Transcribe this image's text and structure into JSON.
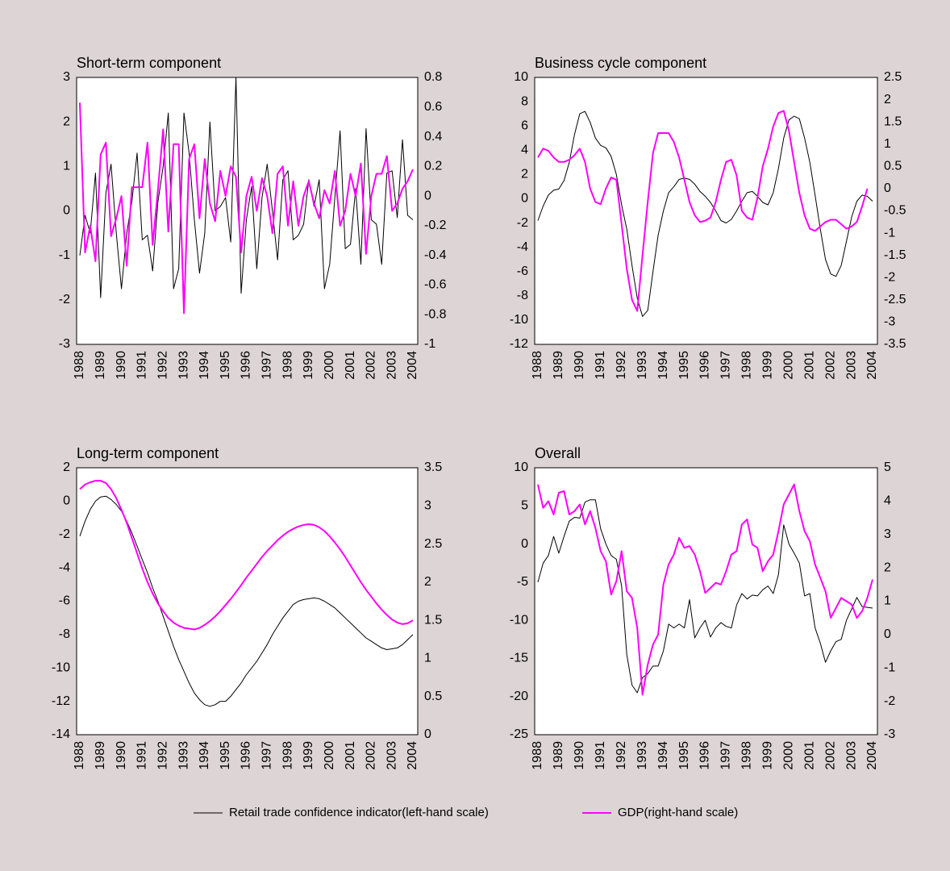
{
  "chart_data": [
    {
      "type": "line",
      "title": "Short-term component",
      "categories": [
        "1988",
        null,
        null,
        null,
        "1989",
        null,
        null,
        null,
        "1990",
        null,
        null,
        null,
        "1991",
        null,
        null,
        null,
        "1992",
        null,
        null,
        null,
        "1993",
        null,
        null,
        null,
        "1994",
        null,
        null,
        null,
        "1995",
        null,
        null,
        null,
        "1996",
        null,
        null,
        null,
        "1997",
        null,
        null,
        null,
        "1998",
        null,
        null,
        null,
        "1999",
        null,
        null,
        null,
        "2000",
        null,
        null,
        null,
        "2001",
        null,
        null,
        null,
        "2002",
        null,
        null,
        null,
        "2003",
        null,
        null,
        null,
        "2004"
      ],
      "series": [
        {
          "name": "Retail trade confidence indicator(left-hand scale)",
          "color": "#000000",
          "values": [
            -1.0,
            -0.1,
            -0.5,
            0.85,
            -1.95,
            0.4,
            1.05,
            -0.5,
            -1.75,
            -0.5,
            0.2,
            1.3,
            -0.65,
            -0.55,
            -1.35,
            0.2,
            1.0,
            2.2,
            -1.75,
            -1.3,
            2.2,
            1.3,
            -0.2,
            -1.4,
            -0.5,
            2.0,
            0.0,
            0.1,
            0.3,
            -0.7,
            3.0,
            -1.85,
            -0.2,
            0.55,
            -1.3,
            0.3,
            1.05,
            0.0,
            -1.1,
            0.7,
            0.9,
            -0.65,
            -0.55,
            -0.3,
            0.7,
            0.1,
            0.7,
            -1.75,
            -1.2,
            0.3,
            1.8,
            -0.85,
            -0.75,
            0.5,
            -1.2,
            1.85,
            -0.2,
            -0.3,
            -1.2,
            0.85,
            0.9,
            -0.15,
            1.6,
            -0.1,
            -0.2
          ]
        },
        {
          "name": "GDP(right-hand scale)",
          "color": "#ff00ff",
          "axis": "y2",
          "values": [
            0.63,
            -0.38,
            -0.2,
            -0.44,
            0.28,
            0.36,
            -0.27,
            -0.15,
            0.0,
            -0.47,
            0.06,
            0.06,
            0.06,
            0.36,
            -0.33,
            0.04,
            0.45,
            -0.24,
            0.35,
            0.35,
            -0.79,
            0.25,
            0.35,
            -0.15,
            0.25,
            -0.05,
            -0.17,
            0.17,
            0.0,
            0.2,
            0.13,
            -0.38,
            0.0,
            0.13,
            -0.1,
            0.12,
            0.0,
            -0.25,
            0.15,
            0.2,
            -0.2,
            0.1,
            -0.2,
            0.0,
            0.1,
            -0.05,
            -0.15,
            0.04,
            -0.05,
            0.17,
            -0.2,
            -0.1,
            0.15,
            0.0,
            0.22,
            -0.39,
            0.0,
            0.15,
            0.15,
            0.27,
            -0.1,
            -0.05,
            0.05,
            0.1,
            0.18
          ]
        }
      ],
      "ylim": [
        -3,
        3
      ],
      "yticks": [
        -3,
        -2,
        -1,
        0,
        1,
        2,
        3
      ],
      "y2lim": [
        -1,
        0.8
      ],
      "y2ticks": [
        -1,
        -0.8,
        -0.6,
        -0.4,
        -0.2,
        0,
        0.2,
        0.4,
        0.6,
        0.8
      ]
    },
    {
      "type": "line",
      "title": "Business cycle component",
      "categories": [
        "1988",
        null,
        null,
        null,
        "1989",
        null,
        null,
        null,
        "1990",
        null,
        null,
        null,
        "1991",
        null,
        null,
        null,
        "1992",
        null,
        null,
        null,
        "1993",
        null,
        null,
        null,
        "1994",
        null,
        null,
        null,
        "1995",
        null,
        null,
        null,
        "1996",
        null,
        null,
        null,
        "1997",
        null,
        null,
        null,
        "1998",
        null,
        null,
        null,
        "1999",
        null,
        null,
        null,
        "2000",
        null,
        null,
        null,
        "2001",
        null,
        null,
        null,
        "2002",
        null,
        null,
        null,
        "2003",
        null,
        null,
        null,
        "2004"
      ],
      "series": [
        {
          "color": "#000000",
          "values": [
            -1.8,
            -0.6,
            0.3,
            0.7,
            0.8,
            1.5,
            3.0,
            5.3,
            7.0,
            7.2,
            6.3,
            5.0,
            4.4,
            4.2,
            3.5,
            2.0,
            -0.5,
            -2.5,
            -5.5,
            -8.2,
            -9.7,
            -9.2,
            -6.0,
            -3.0,
            -1.0,
            0.5,
            1.0,
            1.6,
            1.7,
            1.6,
            1.2,
            0.6,
            0.2,
            -0.3,
            -1.0,
            -1.8,
            -2.0,
            -1.7,
            -1.0,
            -0.2,
            0.5,
            0.6,
            0.2,
            -0.3,
            -0.5,
            0.5,
            2.5,
            5.0,
            6.5,
            6.8,
            6.6,
            5.0,
            3.0,
            0.3,
            -2.5,
            -5.0,
            -6.2,
            -6.4,
            -5.5,
            -3.5,
            -1.5,
            -0.2,
            0.3,
            0.2,
            -0.2
          ]
        },
        {
          "color": "#ff00ff",
          "axis": "y2",
          "values": [
            0.7,
            0.9,
            0.85,
            0.7,
            0.6,
            0.6,
            0.65,
            0.75,
            0.9,
            0.6,
            0.0,
            -0.3,
            -0.35,
            0.0,
            0.25,
            0.2,
            -0.8,
            -1.8,
            -2.5,
            -2.75,
            -1.5,
            -0.3,
            0.8,
            1.25,
            1.25,
            1.25,
            1.05,
            0.7,
            0.2,
            -0.3,
            -0.6,
            -0.75,
            -0.72,
            -0.65,
            -0.3,
            0.2,
            0.6,
            0.65,
            0.3,
            -0.5,
            -0.65,
            -0.7,
            -0.2,
            0.5,
            0.9,
            1.4,
            1.7,
            1.75,
            1.3,
            0.6,
            -0.1,
            -0.6,
            -0.9,
            -0.95,
            -0.85,
            -0.75,
            -0.7,
            -0.7,
            -0.8,
            -0.9,
            -0.85,
            -0.75,
            -0.4,
            0.0,
            null
          ]
        }
      ],
      "ylim": [
        -12,
        10
      ],
      "yticks": [
        -12,
        -10,
        -8,
        -6,
        -4,
        -2,
        0,
        2,
        4,
        6,
        8,
        10
      ],
      "y2lim": [
        -3.5,
        2.5
      ],
      "y2ticks": [
        -3.5,
        -3,
        -2.5,
        -2,
        -1.5,
        -1,
        -0.5,
        0,
        0.5,
        1,
        1.5,
        2,
        2.5
      ]
    },
    {
      "type": "line",
      "title": "Long-term component",
      "categories": [
        "1988",
        null,
        null,
        null,
        "1989",
        null,
        null,
        null,
        "1990",
        null,
        null,
        null,
        "1991",
        null,
        null,
        null,
        "1992",
        null,
        null,
        null,
        "1993",
        null,
        null,
        null,
        "1994",
        null,
        null,
        null,
        "1995",
        null,
        null,
        null,
        "1996",
        null,
        null,
        null,
        "1997",
        null,
        null,
        null,
        "1998",
        null,
        null,
        null,
        "1999",
        null,
        null,
        null,
        "2000",
        null,
        null,
        null,
        "2001",
        null,
        null,
        null,
        "2002",
        null,
        null,
        null,
        "2003",
        null,
        null,
        null,
        "2004"
      ],
      "series": [
        {
          "color": "#000000",
          "values": [
            -2.1,
            -1.2,
            -0.5,
            0.0,
            0.25,
            0.3,
            0.1,
            -0.2,
            -0.6,
            -1.2,
            -1.9,
            -2.7,
            -3.5,
            -4.3,
            -5.2,
            -6.0,
            -6.9,
            -7.8,
            -8.7,
            -9.5,
            -10.2,
            -10.9,
            -11.5,
            -11.9,
            -12.2,
            -12.3,
            -12.2,
            -12.0,
            -12.0,
            -11.7,
            -11.3,
            -10.9,
            -10.4,
            -10.0,
            -9.6,
            -9.1,
            -8.6,
            -8.0,
            -7.5,
            -7.0,
            -6.6,
            -6.2,
            -6.0,
            -5.9,
            -5.85,
            -5.8,
            -5.85,
            -6.0,
            -6.2,
            -6.4,
            -6.7,
            -7.0,
            -7.3,
            -7.6,
            -7.9,
            -8.2,
            -8.4,
            -8.6,
            -8.8,
            -8.9,
            -8.85,
            -8.8,
            -8.6,
            -8.3,
            -8.0
          ]
        },
        {
          "color": "#ff00ff",
          "axis": "y2",
          "values": [
            3.22,
            3.28,
            3.31,
            3.33,
            3.33,
            3.3,
            3.22,
            3.1,
            2.95,
            2.78,
            2.58,
            2.38,
            2.18,
            2.0,
            1.85,
            1.72,
            1.62,
            1.53,
            1.47,
            1.43,
            1.4,
            1.39,
            1.38,
            1.4,
            1.44,
            1.49,
            1.55,
            1.62,
            1.7,
            1.78,
            1.87,
            1.96,
            2.06,
            2.15,
            2.24,
            2.33,
            2.41,
            2.48,
            2.55,
            2.61,
            2.66,
            2.7,
            2.73,
            2.75,
            2.76,
            2.75,
            2.72,
            2.67,
            2.6,
            2.52,
            2.43,
            2.33,
            2.22,
            2.11,
            2.0,
            1.9,
            1.81,
            1.72,
            1.64,
            1.57,
            1.51,
            1.47,
            1.45,
            1.46,
            1.5
          ]
        }
      ],
      "ylim": [
        -14,
        2
      ],
      "yticks": [
        -14,
        -12,
        -10,
        -8,
        -6,
        -4,
        -2,
        0,
        2
      ],
      "y2lim": [
        0,
        3.5
      ],
      "y2ticks": [
        0,
        0.5,
        1,
        1.5,
        2,
        2.5,
        3,
        3.5
      ]
    },
    {
      "type": "line",
      "title": "Overall",
      "categories": [
        "1988",
        null,
        null,
        null,
        "1989",
        null,
        null,
        null,
        "1990",
        null,
        null,
        null,
        "1991",
        null,
        null,
        null,
        "1992",
        null,
        null,
        null,
        "1993",
        null,
        null,
        null,
        "1994",
        null,
        null,
        null,
        "1995",
        null,
        null,
        null,
        "1996",
        null,
        null,
        null,
        "1997",
        null,
        null,
        null,
        "1998",
        null,
        null,
        null,
        "1999",
        null,
        null,
        null,
        "2000",
        null,
        null,
        null,
        "2001",
        null,
        null,
        null,
        "2002",
        null,
        null,
        null,
        "2003",
        null,
        null,
        null,
        "2004"
      ],
      "series": [
        {
          "color": "#000000",
          "values": [
            -5.0,
            -2.5,
            -1.5,
            1.0,
            -1.2,
            1.0,
            3.0,
            3.5,
            3.4,
            5.5,
            5.8,
            5.8,
            2.0,
            0.0,
            -1.5,
            -2.0,
            -5.5,
            -14.5,
            -18.5,
            -19.5,
            -17.5,
            -17.0,
            -16.0,
            -16.0,
            -14.0,
            -10.5,
            -11.0,
            -10.5,
            -11.0,
            -7.3,
            -12.3,
            -11.0,
            -10.0,
            -12.2,
            -11.0,
            -10.3,
            -10.8,
            -11.0,
            -8.0,
            -6.5,
            -7.2,
            -6.7,
            -6.8,
            -6.0,
            -5.5,
            -6.5,
            -4.0,
            2.5,
            0.0,
            -1.2,
            -2.5,
            -6.8,
            -6.5,
            -11.0,
            -13.0,
            -15.5,
            -14.0,
            -12.8,
            -12.5,
            -10.0,
            -8.5,
            -7.0,
            -8.2,
            -8.3,
            -8.4
          ]
        },
        {
          "color": "#ff00ff",
          "axis": "y2",
          "values": [
            4.5,
            3.8,
            4.0,
            3.6,
            4.25,
            4.3,
            3.6,
            3.7,
            3.9,
            3.3,
            3.7,
            3.2,
            2.5,
            2.2,
            1.2,
            1.6,
            2.5,
            1.3,
            1.1,
            0.2,
            -1.8,
            -0.9,
            -0.3,
            0.0,
            1.5,
            2.1,
            2.4,
            2.9,
            2.6,
            2.65,
            2.4,
            1.9,
            1.25,
            1.4,
            1.55,
            1.5,
            1.9,
            2.4,
            2.5,
            3.3,
            3.45,
            2.7,
            2.6,
            1.9,
            2.2,
            2.4,
            3.1,
            3.9,
            4.2,
            4.5,
            3.7,
            3.1,
            2.8,
            2.1,
            1.7,
            1.3,
            0.5,
            0.8,
            1.1,
            1.0,
            0.9,
            0.5,
            0.7,
            1.1,
            1.65
          ]
        }
      ],
      "ylim": [
        -25,
        10
      ],
      "yticks": [
        -25,
        -20,
        -15,
        -10,
        -5,
        0,
        5,
        10
      ],
      "y2lim": [
        -3,
        5
      ],
      "y2ticks": [
        -3,
        -2,
        -1,
        0,
        1,
        2,
        3,
        4,
        5
      ]
    }
  ]
}
